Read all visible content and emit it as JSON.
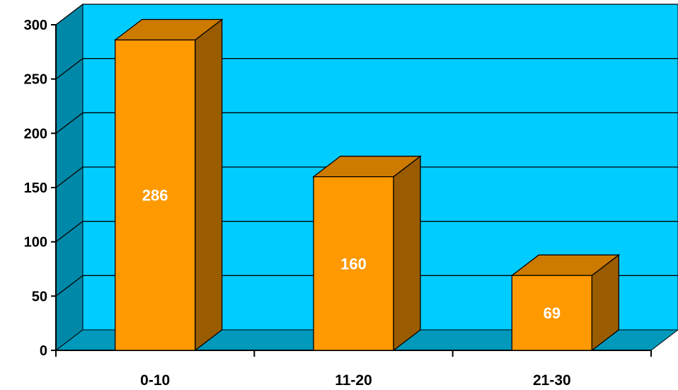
{
  "chart_data": {
    "type": "bar",
    "style": "3d",
    "categories": [
      "0-10",
      "11-20",
      "21-30"
    ],
    "values": [
      286,
      160,
      69
    ],
    "data_labels": [
      "286",
      "160",
      "69"
    ],
    "title": "",
    "xlabel": "",
    "ylabel": "",
    "ylim": [
      0,
      300
    ],
    "yticks": [
      "0",
      "50",
      "100",
      "150",
      "200",
      "250",
      "300"
    ],
    "grid": true,
    "legend": "none",
    "colors": {
      "bar_front": "#FF9900",
      "bar_top": "#CC7A00",
      "bar_side": "#995C00",
      "back_wall": "#00CCFF",
      "side_wall": "#0088A8",
      "floor": "#0099BB",
      "gridline": "#000000"
    }
  }
}
